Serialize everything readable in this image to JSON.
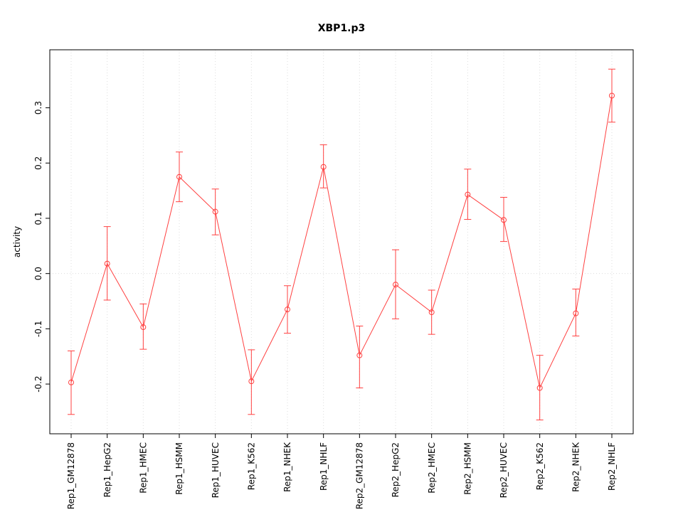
{
  "page": {
    "title": "XBP1.p3"
  },
  "chart_data": {
    "type": "line",
    "title": "XBP1.p3",
    "xlabel": "",
    "ylabel": "activity",
    "categories": [
      "Rep1_GM12878",
      "Rep1_HepG2",
      "Rep1_HMEC",
      "Rep1_HSMM",
      "Rep1_HUVEC",
      "Rep1_K562",
      "Rep1_NHEK",
      "Rep1_NHLF",
      "Rep2_GM12878",
      "Rep2_HepG2",
      "Rep2_HMEC",
      "Rep2_HSMM",
      "Rep2_HUVEC",
      "Rep2_K562",
      "Rep2_NHEK",
      "Rep2_NHLF"
    ],
    "values": [
      -0.197,
      0.018,
      -0.097,
      0.175,
      0.112,
      -0.195,
      -0.065,
      0.193,
      -0.148,
      -0.02,
      -0.07,
      0.143,
      0.097,
      -0.207,
      -0.072,
      0.322
    ],
    "error_low": [
      -0.255,
      -0.048,
      -0.137,
      0.13,
      0.07,
      -0.255,
      -0.108,
      0.155,
      -0.207,
      -0.082,
      -0.11,
      0.098,
      0.058,
      -0.265,
      -0.113,
      0.274
    ],
    "error_high": [
      -0.14,
      0.085,
      -0.055,
      0.22,
      0.153,
      -0.138,
      -0.022,
      0.233,
      -0.095,
      0.043,
      -0.03,
      0.189,
      0.138,
      -0.148,
      -0.028,
      0.37
    ],
    "ytick_values": [
      -0.2,
      -0.1,
      0.0,
      0.1,
      0.2,
      0.3
    ],
    "ytick_labels": [
      "-0.2",
      "-0.1",
      "0.0",
      "0.1",
      "0.2",
      "0.3"
    ],
    "ylim": [
      -0.29,
      0.405
    ],
    "grid": true,
    "zero_line": true,
    "legend_position": "none",
    "marker": "open-circle",
    "error_bars": true,
    "colors": {
      "line": "#FF4040",
      "grid": "#DCDCDC",
      "axis": "#000000",
      "background": "#FFFFFF"
    }
  }
}
